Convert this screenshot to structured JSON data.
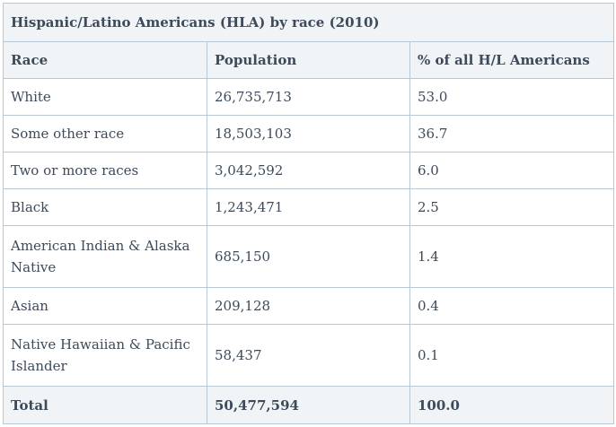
{
  "table": {
    "title": "Hispanic/Latino Americans (HLA) by race (2010)",
    "headers": [
      "Race",
      "Population",
      "% of all H/L Americans"
    ],
    "rows": [
      {
        "race": "White",
        "population": "26,735,713",
        "percent": "53.0"
      },
      {
        "race": "Some other race",
        "population": "18,503,103",
        "percent": "36.7"
      },
      {
        "race": "Two or more races",
        "population": "3,042,592",
        "percent": "6.0"
      },
      {
        "race": "Black",
        "population": "1,243,471",
        "percent": "2.5"
      },
      {
        "race": "American Indian & Alaska Native",
        "population": "685,150",
        "percent": "1.4"
      },
      {
        "race": "Asian",
        "population": "209,128",
        "percent": "0.4"
      },
      {
        "race": "Native Hawaiian & Pacific Islander",
        "population": "58,437",
        "percent": "0.1"
      }
    ],
    "total": {
      "label": "Total",
      "population": "50,477,594",
      "percent": "100.0"
    }
  },
  "colors": {
    "border": "#b9c6d3",
    "header_bg": "#f1f4f7",
    "text": "#3d4a5a"
  }
}
